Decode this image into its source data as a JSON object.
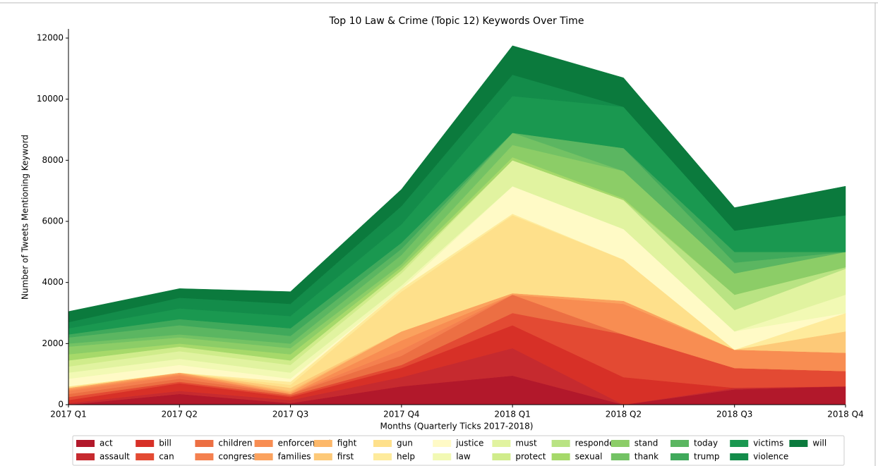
{
  "chart_data": {
    "type": "stacked_area",
    "title": "Top 10 Law & Crime (Topic 12) Keywords Over Time",
    "x_label": "Months (Quarterly Ticks 2017-2018)",
    "y_label": "Number of Tweets Mentioning Keyword",
    "categories": [
      "2017 Q1",
      "2017 Q2",
      "2017 Q3",
      "2017 Q4",
      "2018 Q1",
      "2018 Q2",
      "2018 Q3",
      "2018 Q4"
    ],
    "ylim": [
      0,
      12300
    ],
    "yticks": [
      0,
      2000,
      4000,
      6000,
      8000,
      10000,
      12000
    ],
    "series": [
      {
        "name": "act",
        "color": "#b2182b",
        "values": [
          0,
          350,
          50,
          600,
          950,
          0,
          500,
          600
        ]
      },
      {
        "name": "assault",
        "color": "#c62a2f",
        "values": [
          50,
          100,
          100,
          300,
          900,
          0,
          50,
          0
        ]
      },
      {
        "name": "bill",
        "color": "#d73027",
        "values": [
          100,
          250,
          100,
          300,
          750,
          900,
          0,
          0
        ]
      },
      {
        "name": "can",
        "color": "#e34a33",
        "values": [
          100,
          50,
          50,
          100,
          400,
          1400,
          650,
          500
        ]
      },
      {
        "name": "children",
        "color": "#ec6f43",
        "values": [
          100,
          100,
          50,
          300,
          600,
          0,
          0,
          0
        ]
      },
      {
        "name": "congress",
        "color": "#f4804f",
        "values": [
          100,
          100,
          0,
          200,
          0,
          0,
          0,
          0
        ]
      },
      {
        "name": "enforcement",
        "color": "#f88d52",
        "values": [
          50,
          50,
          0,
          300,
          0,
          1000,
          600,
          600
        ]
      },
      {
        "name": "families",
        "color": "#fba25e",
        "values": [
          50,
          50,
          50,
          300,
          50,
          100,
          0,
          0
        ]
      },
      {
        "name": "fight",
        "color": "#fdb869",
        "values": [
          0,
          0,
          50,
          0,
          0,
          0,
          0,
          0
        ]
      },
      {
        "name": "first",
        "color": "#fdc978",
        "values": [
          0,
          0,
          100,
          0,
          0,
          0,
          0,
          700
        ]
      },
      {
        "name": "gun",
        "color": "#fee08b",
        "values": [
          50,
          0,
          100,
          1300,
          2550,
          1350,
          0,
          0
        ]
      },
      {
        "name": "help",
        "color": "#feeb9c",
        "values": [
          0,
          0,
          100,
          100,
          50,
          0,
          0,
          600
        ]
      },
      {
        "name": "justice",
        "color": "#fffac6",
        "values": [
          250,
          250,
          100,
          0,
          900,
          1000,
          600,
          0
        ]
      },
      {
        "name": "law",
        "color": "#f2f9b4",
        "values": [
          200,
          200,
          200,
          100,
          0,
          0,
          0,
          600
        ]
      },
      {
        "name": "must",
        "color": "#e1f3a0",
        "values": [
          200,
          250,
          250,
          400,
          850,
          950,
          700,
          850
        ]
      },
      {
        "name": "protect",
        "color": "#d0ec8b",
        "values": [
          200,
          150,
          150,
          100,
          0,
          0,
          0,
          0
        ]
      },
      {
        "name": "responders",
        "color": "#b9e383",
        "values": [
          0,
          0,
          0,
          0,
          0,
          0,
          500,
          50
        ]
      },
      {
        "name": "sexual",
        "color": "#a6d96a",
        "values": [
          200,
          100,
          200,
          100,
          100,
          50,
          0,
          0
        ]
      },
      {
        "name": "stand",
        "color": "#8ccd67",
        "values": [
          250,
          200,
          200,
          100,
          400,
          900,
          700,
          500
        ]
      },
      {
        "name": "thank",
        "color": "#73c264",
        "values": [
          100,
          100,
          150,
          300,
          400,
          0,
          0,
          0
        ]
      },
      {
        "name": "today",
        "color": "#5bb661",
        "values": [
          200,
          300,
          250,
          200,
          0,
          750,
          350,
          0
        ]
      },
      {
        "name": "trump",
        "color": "#40a95b",
        "values": [
          100,
          200,
          250,
          200,
          0,
          0,
          350,
          0
        ]
      },
      {
        "name": "victims",
        "color": "#1a9850",
        "values": [
          200,
          350,
          400,
          600,
          1200,
          1350,
          700,
          1200
        ]
      },
      {
        "name": "violence",
        "color": "#138c4a",
        "values": [
          200,
          350,
          400,
          600,
          700,
          0,
          0,
          0
        ]
      },
      {
        "name": "will",
        "color": "#0b7a3d",
        "values": [
          350,
          300,
          400,
          550,
          950,
          950,
          750,
          950
        ]
      }
    ]
  }
}
